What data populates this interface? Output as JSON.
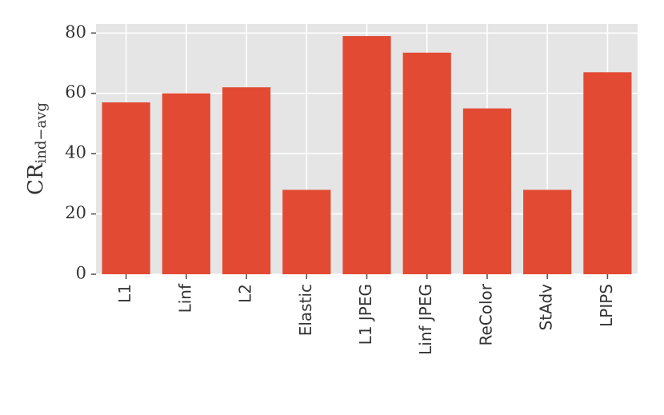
{
  "chart_data": {
    "type": "bar",
    "ylabel": {
      "text": "CR",
      "subscript": "ind−avg"
    },
    "categories": [
      "L1",
      "Linf",
      "L2",
      "Elastic",
      "L1 JPEG",
      "Linf JPEG",
      "ReColor",
      "StAdv",
      "LPIPS"
    ],
    "values": [
      57,
      60,
      62,
      28,
      79,
      73.5,
      55,
      28,
      67
    ],
    "color": "#e24a33",
    "ylim": [
      0,
      83
    ],
    "yticks": [
      0,
      20,
      40,
      60,
      80
    ],
    "grid": true
  }
}
